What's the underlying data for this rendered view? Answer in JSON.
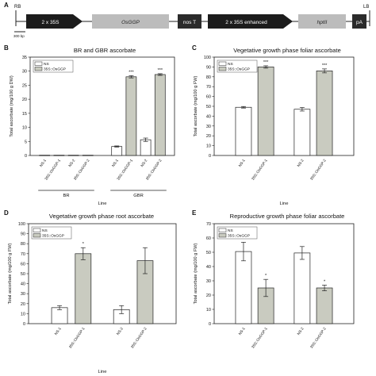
{
  "construct": {
    "panel_label": "A",
    "rb": "RB",
    "lb": "LB",
    "scale": "300 bp",
    "elements": [
      {
        "label": "2 x 35S",
        "kind": "arrow",
        "fill": "#1c1c1c",
        "text": "#ffffff",
        "italic": false
      },
      {
        "label": "OsGGP",
        "kind": "box",
        "fill": "#bcbcbc",
        "text": "#222222",
        "italic": true
      },
      {
        "label": "nos T",
        "kind": "box",
        "fill": "#2b2b2b",
        "text": "#ffffff",
        "italic": false
      },
      {
        "label": "2 x 35S enhanced",
        "kind": "arrow",
        "fill": "#1c1c1c",
        "text": "#ffffff",
        "italic": false
      },
      {
        "label": "hptII",
        "kind": "box",
        "fill": "#bcbcbc",
        "text": "#222222",
        "italic": true
      },
      {
        "label": "pA",
        "kind": "box",
        "fill": "#2b2b2b",
        "text": "#ffffff",
        "italic": false
      }
    ]
  },
  "colors": {
    "ns_fill": "#ffffff",
    "ggp_fill": "#c9cbc0",
    "axis": "#222222"
  },
  "chart_data": [
    {
      "panel": "B",
      "type": "bar",
      "title": "BR and GBR ascorbate",
      "ylabel": "Total ascorbate (mg/100 g DW)",
      "xlabel": "Line",
      "ylim": [
        0,
        35
      ],
      "yticks": [
        0,
        5,
        10,
        15,
        20,
        25,
        30,
        35
      ],
      "legend": [
        "NS",
        "35S::OsGGP"
      ],
      "legend_position": "top-left",
      "groups": [
        "BR",
        "GBR"
      ],
      "bars": [
        {
          "label": "NS-1",
          "value": 0.1,
          "err": 0,
          "series": 0,
          "sig": "",
          "group": 0
        },
        {
          "label": "35S::OsGGP-1",
          "value": 0.1,
          "err": 0,
          "series": 1,
          "sig": "",
          "group": 0
        },
        {
          "label": "NS-2",
          "value": 0.1,
          "err": 0,
          "series": 0,
          "sig": "",
          "group": 0
        },
        {
          "label": "35S::OsGGP-2",
          "value": 0.1,
          "err": 0,
          "series": 1,
          "sig": "",
          "group": 0
        },
        {
          "label": "NS-1",
          "value": 3.2,
          "err": 0.2,
          "series": 0,
          "sig": "",
          "group": 1
        },
        {
          "label": "35S::OsGGP-1",
          "value": 28,
          "err": 0.4,
          "series": 1,
          "sig": "***",
          "group": 1
        },
        {
          "label": "NS-2",
          "value": 5.6,
          "err": 0.6,
          "series": 0,
          "sig": "",
          "group": 1
        },
        {
          "label": "35S::OsGGP-2",
          "value": 28.8,
          "err": 0.3,
          "series": 1,
          "sig": "***",
          "group": 1
        }
      ]
    },
    {
      "panel": "C",
      "type": "bar",
      "title": "Vegetative growth phase foliar ascorbate",
      "ylabel": "Total ascorbate (mg/100 g FW)",
      "xlabel": "Line",
      "ylim": [
        0,
        100
      ],
      "yticks": [
        0,
        10,
        20,
        30,
        40,
        50,
        60,
        70,
        80,
        90,
        100
      ],
      "legend": [
        "NS",
        "35S::OsGGP"
      ],
      "legend_position": "top-left",
      "bars": [
        {
          "label": "NS-1",
          "value": 49,
          "err": 0.8,
          "series": 0,
          "sig": ""
        },
        {
          "label": "35S::OsGGP-1",
          "value": 90,
          "err": 1.2,
          "series": 1,
          "sig": "***"
        },
        {
          "label": "NS-2",
          "value": 47,
          "err": 1.8,
          "series": 0,
          "sig": ""
        },
        {
          "label": "35S::OsGGP-2",
          "value": 86,
          "err": 2,
          "series": 1,
          "sig": "***"
        }
      ]
    },
    {
      "panel": "D",
      "type": "bar",
      "title": "Vegetative growth phase root ascorbate",
      "ylabel": "Total ascorbate (mg/100 g FW)",
      "xlabel": "Line",
      "ylim": [
        0,
        100
      ],
      "yticks": [
        0,
        10,
        20,
        30,
        40,
        50,
        60,
        70,
        80,
        90,
        100
      ],
      "legend": [
        "NS",
        "35S::OsGGP"
      ],
      "legend_position": "top-left",
      "bars": [
        {
          "label": "NS-1",
          "value": 16,
          "err": 2,
          "series": 0,
          "sig": ""
        },
        {
          "label": "35S::OsGGP-1",
          "value": 70,
          "err": 6,
          "series": 1,
          "sig": "*"
        },
        {
          "label": "NS-2",
          "value": 14,
          "err": 4,
          "series": 0,
          "sig": ""
        },
        {
          "label": "35S::OsGGP-2",
          "value": 63,
          "err": 13,
          "series": 1,
          "sig": ""
        }
      ]
    },
    {
      "panel": "E",
      "type": "bar",
      "title": "Reproductive growth phase foliar ascorbate",
      "ylabel": "Total ascorbate (mg/100 g FW)",
      "xlabel": "",
      "ylim": [
        0,
        70
      ],
      "yticks": [
        0,
        10,
        20,
        30,
        40,
        50,
        60,
        70
      ],
      "legend": [
        "NS",
        "35S::OsGGP"
      ],
      "legend_position": "top-left",
      "bars": [
        {
          "label": "NS-1",
          "value": 50.5,
          "err": 6.5,
          "series": 0,
          "sig": ""
        },
        {
          "label": "35S::OsGGP-1",
          "value": 25,
          "err": 6,
          "series": 1,
          "sig": "*"
        },
        {
          "label": "NS-2",
          "value": 49.5,
          "err": 4.5,
          "series": 0,
          "sig": ""
        },
        {
          "label": "35S::OsGGP-2",
          "value": 25,
          "err": 2,
          "series": 1,
          "sig": "*"
        }
      ]
    }
  ]
}
